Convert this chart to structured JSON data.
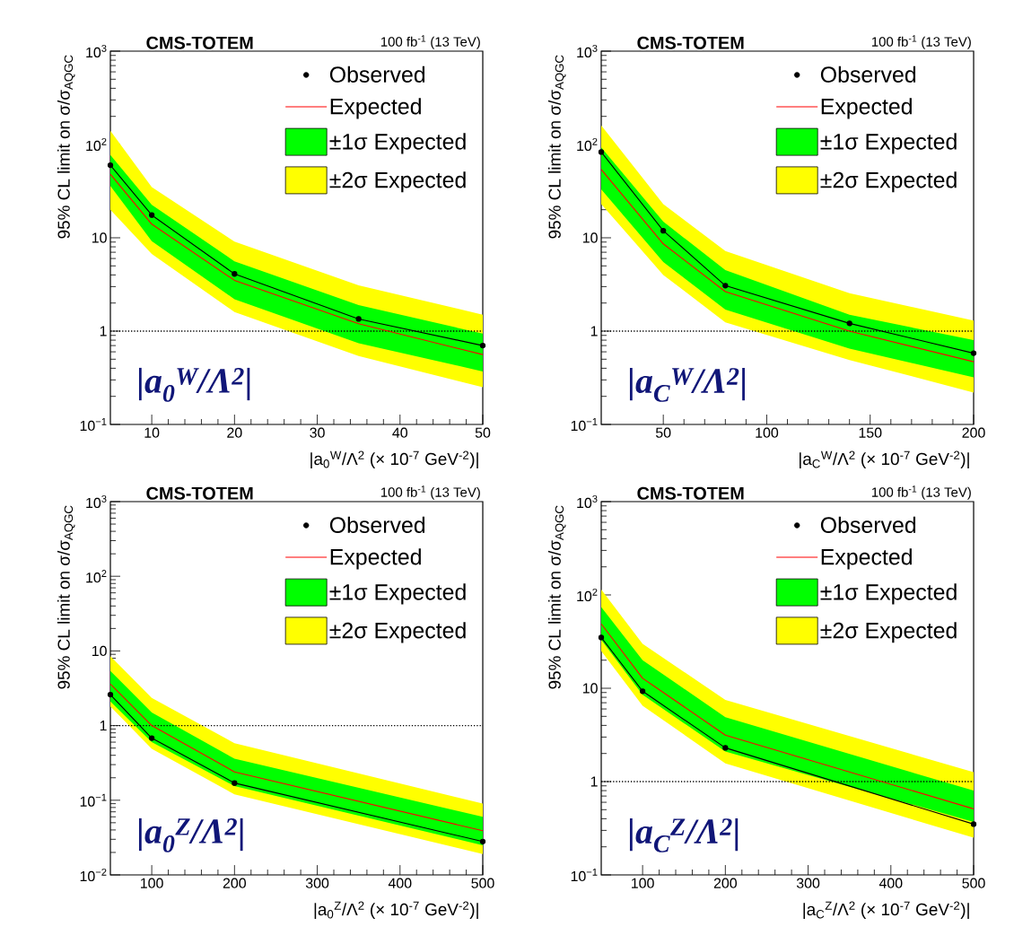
{
  "chart_data": [
    {
      "type": "line",
      "title": "CMS-TOTEM",
      "subtitle": "100 fb$^{-1}$ (13 TeV)",
      "xlabel": "|a$_{0}$$^{W}$/Λ$^{2}$ (× 10$^{-7}$ GeV$^{-2}$)|",
      "ylabel": "95% CL limit on σ/σ$_{AQGC}$",
      "annotations": [
        "|a$_{0}$$^{W}$/Λ$^{2}$|"
      ],
      "x": [
        5,
        10,
        20,
        35,
        50
      ],
      "xlim": [
        5,
        50
      ],
      "xticks": [
        10,
        20,
        30,
        40,
        50
      ],
      "ylim": [
        0.1,
        1000
      ],
      "log": "y",
      "legend": "top right",
      "yticks": [
        {
          "value": 0.1,
          "label": "10$^{−1}$"
        },
        {
          "value": 1,
          "label": "1"
        },
        {
          "value": 10,
          "label": "10"
        },
        {
          "value": 100,
          "label": "10$^{2}$"
        },
        {
          "value": 1000,
          "label": "10$^{3}$"
        }
      ],
      "ref_lines": [
        {
          "axis": "y",
          "value": 1,
          "line_style": "dotted",
          "color": "#000000"
        }
      ],
      "series": [
        {
          "name": "Observed",
          "type": "line",
          "color": "#000000",
          "marker": "circle",
          "values": [
            60,
            17.5,
            4.1,
            1.35,
            0.7
          ]
        },
        {
          "name": "Expected",
          "type": "line",
          "color": "#ff0000",
          "marker": "none",
          "values": [
            48,
            14,
            3.5,
            1.2,
            0.56
          ]
        },
        {
          "name": "±1σ Expected",
          "type": "line",
          "color": "#00ff00",
          "values": [
            null,
            null,
            null,
            null,
            null
          ],
          "lower": [
            36,
            9.2,
            2.2,
            0.74,
            0.37
          ],
          "upper": [
            77,
            22.6,
            5.6,
            1.9,
            0.94
          ]
        },
        {
          "name": "±2σ Expected",
          "type": "line",
          "color": "#ffff00",
          "values": [
            null,
            null,
            null,
            null,
            null
          ],
          "lower": [
            20,
            6.7,
            1.6,
            0.54,
            0.25
          ],
          "upper": [
            140,
            35,
            9.1,
            3.1,
            1.5
          ]
        }
      ]
    },
    {
      "type": "line",
      "title": "CMS-TOTEM",
      "subtitle": "100 fb$^{-1}$ (13 TeV)",
      "xlabel": "|a$_{C}$$^{W}$/Λ$^{2}$ (× 10$^{-7}$ GeV$^{-2}$)|",
      "ylabel": "95% CL limit on σ/σ$_{AQGC}$",
      "annotations": [
        "|a$_{C}$$^{W}$/Λ$^{2}$|"
      ],
      "x": [
        20,
        50,
        80,
        140,
        200
      ],
      "xlim": [
        20,
        200
      ],
      "xticks": [
        50,
        100,
        150,
        200
      ],
      "ylim": [
        0.1,
        1000
      ],
      "log": "y",
      "legend": "top right",
      "yticks": [
        {
          "value": 0.1,
          "label": "10$^{−1}$"
        },
        {
          "value": 1,
          "label": "1"
        },
        {
          "value": 10,
          "label": "10"
        },
        {
          "value": 100,
          "label": "10$^{2}$"
        },
        {
          "value": 1000,
          "label": "10$^{3}$"
        }
      ],
      "ref_lines": [
        {
          "axis": "y",
          "value": 1,
          "line_style": "dotted",
          "color": "#000000"
        }
      ],
      "series": [
        {
          "name": "Observed",
          "type": "line",
          "color": "#000000",
          "marker": "circle",
          "values": [
            83,
            11.9,
            3.07,
            1.21,
            0.58
          ]
        },
        {
          "name": "Expected",
          "type": "line",
          "color": "#ff0000",
          "marker": "none",
          "values": [
            54,
            8.6,
            2.65,
            1.0,
            0.47
          ]
        },
        {
          "name": "±1σ Expected",
          "type": "line",
          "color": "#00ff00",
          "values": [
            null,
            null,
            null,
            null,
            null
          ],
          "lower": [
            33,
            5.5,
            1.7,
            0.65,
            0.32
          ],
          "upper": [
            93,
            14.9,
            4.5,
            1.5,
            0.8
          ]
        },
        {
          "name": "±2σ Expected",
          "type": "line",
          "color": "#ffff00",
          "values": [
            null,
            null,
            null,
            null,
            null
          ],
          "lower": [
            23,
            4.0,
            1.24,
            0.49,
            0.22
          ],
          "upper": [
            160,
            23,
            7.2,
            2.55,
            1.3
          ]
        }
      ]
    },
    {
      "type": "line",
      "title": "CMS-TOTEM",
      "subtitle": "100 fb$^{-1}$ (13 TeV)",
      "xlabel": "|a$_{0}$$^{Z}$/Λ$^{2}$ (× 10$^{-7}$ GeV$^{-2}$)|",
      "ylabel": "95% CL limit on σ/σ$_{AQGC}$",
      "annotations": [
        "|a$_{0}$$^{Z}$/Λ$^{2}$|"
      ],
      "x": [
        50,
        100,
        200,
        500
      ],
      "xlim": [
        50,
        500
      ],
      "xticks": [
        100,
        200,
        300,
        400,
        500
      ],
      "ylim": [
        0.01,
        1000
      ],
      "log": "y",
      "legend": "top right",
      "yticks": [
        {
          "value": 0.01,
          "label": "10$^{−2}$"
        },
        {
          "value": 0.1,
          "label": "10$^{−1}$"
        },
        {
          "value": 1,
          "label": "1"
        },
        {
          "value": 10,
          "label": "10"
        },
        {
          "value": 100,
          "label": "10$^{2}$"
        },
        {
          "value": 1000,
          "label": "10$^{3}$"
        }
      ],
      "ref_lines": [
        {
          "axis": "y",
          "value": 1,
          "line_style": "dotted",
          "color": "#000000"
        }
      ],
      "series": [
        {
          "name": "Observed",
          "type": "line",
          "color": "#000000",
          "marker": "circle",
          "values": [
            2.6,
            0.68,
            0.17,
            0.028
          ]
        },
        {
          "name": "Expected",
          "type": "line",
          "color": "#ff0000",
          "marker": "none",
          "values": [
            3.6,
            1.0,
            0.24,
            0.039
          ]
        },
        {
          "name": "±1σ Expected",
          "type": "line",
          "color": "#00ff00",
          "values": [
            null,
            null,
            null,
            null
          ],
          "lower": [
            2.1,
            0.6,
            0.155,
            0.025
          ],
          "upper": [
            5.4,
            1.5,
            0.36,
            0.06
          ]
        },
        {
          "name": "±2σ Expected",
          "type": "line",
          "color": "#ffff00",
          "values": [
            null,
            null,
            null,
            null
          ],
          "lower": [
            1.8,
            0.49,
            0.12,
            0.019
          ],
          "upper": [
            8.5,
            2.35,
            0.58,
            0.09
          ]
        }
      ]
    },
    {
      "type": "line",
      "title": "CMS-TOTEM",
      "subtitle": "100 fb$^{-1}$ (13 TeV)",
      "xlabel": "|a$_{C}$$^{Z}$/Λ$^{2}$ (× 10$^{-7}$ GeV$^{-2}$)|",
      "ylabel": "95% CL limit on σ/σ$_{AQGC}$",
      "annotations": [
        "|a$_{C}$$^{Z}$/Λ$^{2}$|"
      ],
      "x": [
        50,
        100,
        200,
        500
      ],
      "xlim": [
        50,
        500
      ],
      "xticks": [
        100,
        200,
        300,
        400,
        500
      ],
      "ylim": [
        0.1,
        1000
      ],
      "log": "y",
      "legend": "top right",
      "yticks": [
        {
          "value": 0.1,
          "label": "10$^{−1}$"
        },
        {
          "value": 1,
          "label": "1"
        },
        {
          "value": 10,
          "label": "10"
        },
        {
          "value": 100,
          "label": "10$^{2}$"
        },
        {
          "value": 1000,
          "label": "10$^{3}$"
        }
      ],
      "ref_lines": [
        {
          "axis": "y",
          "value": 1,
          "line_style": "dotted",
          "color": "#000000"
        }
      ],
      "series": [
        {
          "name": "Observed",
          "type": "line",
          "color": "#000000",
          "marker": "circle",
          "values": [
            35,
            9.3,
            2.3,
            0.35
          ]
        },
        {
          "name": "Expected",
          "type": "line",
          "color": "#ff0000",
          "marker": "none",
          "values": [
            49,
            12.8,
            3.15,
            0.51
          ]
        },
        {
          "name": "±1σ Expected",
          "type": "line",
          "color": "#00ff00",
          "values": [
            null,
            null,
            null,
            null
          ],
          "lower": [
            33,
            8.5,
            2.1,
            0.37
          ],
          "upper": [
            74,
            20,
            4.9,
            0.8
          ]
        },
        {
          "name": "±2σ Expected",
          "type": "line",
          "color": "#ffff00",
          "values": [
            null,
            null,
            null,
            null
          ],
          "lower": [
            25,
            6.5,
            1.57,
            0.25
          ],
          "upper": [
            114,
            30,
            7.5,
            1.26
          ]
        }
      ]
    }
  ]
}
